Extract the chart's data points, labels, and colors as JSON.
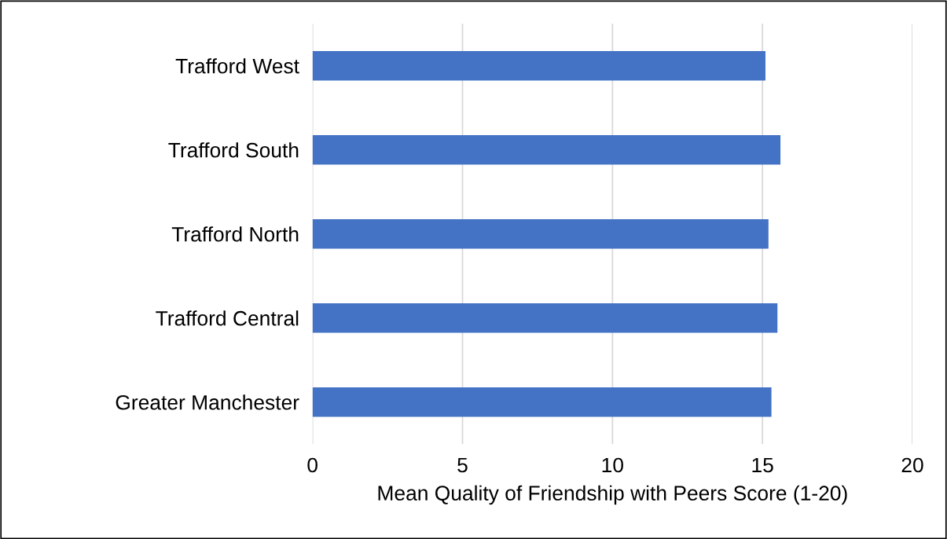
{
  "chart_data": {
    "type": "bar",
    "orientation": "horizontal",
    "categories": [
      "Trafford West",
      "Trafford South",
      "Trafford North",
      "Trafford Central",
      "Greater Manchester"
    ],
    "values": [
      15.1,
      15.6,
      15.2,
      15.5,
      15.3
    ],
    "color": "#4472c4",
    "xlabel": "Mean Quality of Friendship with Peers Score (1-20)",
    "xlim": [
      0,
      20
    ],
    "xticks": [
      0,
      5,
      10,
      15,
      20
    ],
    "grid": "x"
  }
}
